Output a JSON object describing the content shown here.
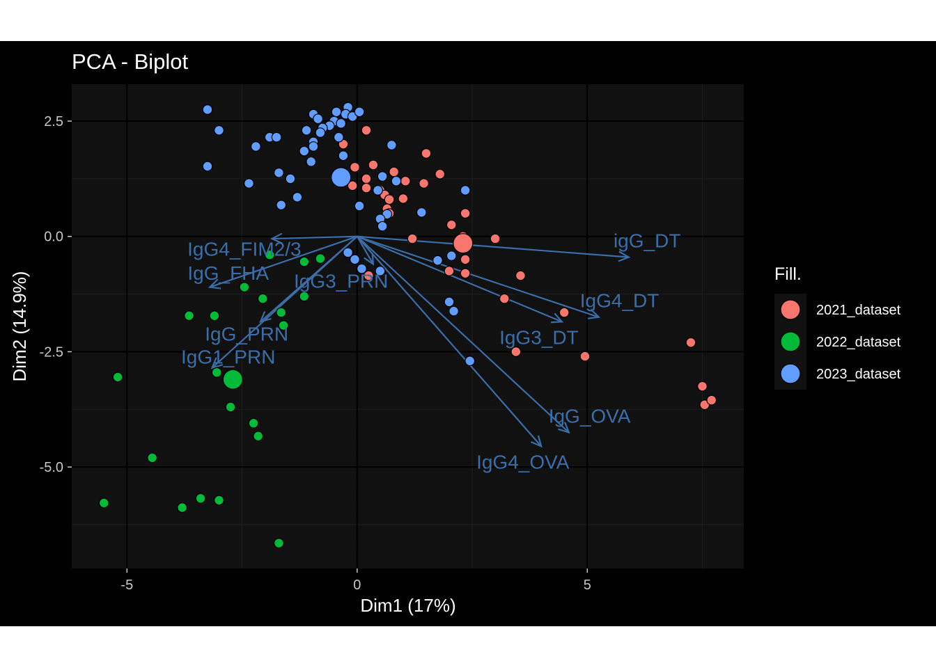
{
  "chart_data": {
    "type": "scatter",
    "title": "PCA - Biplot",
    "xlabel": "Dim1 (17%)",
    "ylabel": "Dim2 (14.9%)",
    "xlim": [
      -6.2,
      8.4
    ],
    "ylim": [
      -7.2,
      3.3
    ],
    "x_ticks": [
      -5,
      0,
      5
    ],
    "x_tick_labels": [
      "-5",
      "0",
      "5"
    ],
    "y_ticks": [
      2.5,
      0.0,
      -2.5,
      -5.0
    ],
    "y_tick_labels": [
      "2.5",
      "0.0",
      "-2.5",
      "-5.0"
    ],
    "grid": true,
    "legend": {
      "title": "Fill.",
      "position": "right",
      "entries": [
        {
          "label": "2021_dataset",
          "color": "#F8766D"
        },
        {
          "label": "2022_dataset",
          "color": "#00BA38"
        },
        {
          "label": "2023_dataset",
          "color": "#619CFF"
        }
      ]
    },
    "series": [
      {
        "name": "2021_dataset",
        "color": "#F8766D",
        "points": [
          [
            0.2,
            2.3
          ],
          [
            -0.3,
            2.0
          ],
          [
            0.35,
            1.55
          ],
          [
            -0.05,
            1.5
          ],
          [
            0.8,
            1.4
          ],
          [
            0.2,
            1.25
          ],
          [
            -0.1,
            1.1
          ],
          [
            0.2,
            1.05
          ],
          [
            0.5,
            1.0
          ],
          [
            1.05,
            1.2
          ],
          [
            1.45,
            1.15
          ],
          [
            1.8,
            1.35
          ],
          [
            1.5,
            1.8
          ],
          [
            0.6,
            0.9
          ],
          [
            0.7,
            0.8
          ],
          [
            1.0,
            0.82
          ],
          [
            0.65,
            0.6
          ],
          [
            0.7,
            0.5
          ],
          [
            2.35,
            0.5
          ],
          [
            2.05,
            0.25
          ],
          [
            2.3,
            0.0
          ],
          [
            2.3,
            -0.2
          ],
          [
            1.2,
            -0.05
          ],
          [
            3.0,
            -0.05
          ],
          [
            2.35,
            -0.5
          ],
          [
            2.35,
            -0.8
          ],
          [
            2.0,
            -0.75
          ],
          [
            3.2,
            -1.35
          ],
          [
            3.55,
            -0.85
          ],
          [
            4.5,
            -1.65
          ],
          [
            3.45,
            -2.5
          ],
          [
            4.95,
            -2.6
          ],
          [
            7.25,
            -2.3
          ],
          [
            7.5,
            -3.25
          ],
          [
            7.55,
            -3.65
          ],
          [
            7.7,
            -3.55
          ],
          [
            0.25,
            -0.85
          ]
        ],
        "centroid": [
          2.3,
          -0.15
        ]
      },
      {
        "name": "2022_dataset",
        "color": "#00BA38",
        "points": [
          [
            -1.9,
            -0.4
          ],
          [
            -1.15,
            -0.55
          ],
          [
            -0.8,
            -0.48
          ],
          [
            -2.45,
            -1.1
          ],
          [
            -2.05,
            -1.35
          ],
          [
            -1.15,
            -1.3
          ],
          [
            -1.65,
            -1.65
          ],
          [
            -1.6,
            -1.93
          ],
          [
            -3.65,
            -1.72
          ],
          [
            -3.1,
            -1.72
          ],
          [
            -3.05,
            -2.95
          ],
          [
            -5.2,
            -3.05
          ],
          [
            -2.75,
            -3.7
          ],
          [
            -2.25,
            -4.05
          ],
          [
            -2.15,
            -4.33
          ],
          [
            -4.45,
            -4.8
          ],
          [
            -3.4,
            -5.68
          ],
          [
            -3.0,
            -5.72
          ],
          [
            -5.5,
            -5.78
          ],
          [
            -3.8,
            -5.88
          ],
          [
            -1.7,
            -6.65
          ]
        ],
        "centroid": [
          -2.7,
          -3.1
        ]
      },
      {
        "name": "2023_dataset",
        "color": "#619CFF",
        "points": [
          [
            -3.25,
            2.75
          ],
          [
            -3.0,
            2.3
          ],
          [
            -1.9,
            2.15
          ],
          [
            -1.75,
            2.15
          ],
          [
            -2.2,
            1.95
          ],
          [
            -0.95,
            2.65
          ],
          [
            -0.85,
            2.55
          ],
          [
            -0.45,
            2.7
          ],
          [
            -0.2,
            2.8
          ],
          [
            -0.25,
            2.65
          ],
          [
            -0.1,
            2.6
          ],
          [
            0.05,
            2.7
          ],
          [
            -0.5,
            2.5
          ],
          [
            -0.35,
            2.45
          ],
          [
            -0.6,
            2.4
          ],
          [
            -0.75,
            2.35
          ],
          [
            -1.1,
            2.3
          ],
          [
            -0.8,
            2.25
          ],
          [
            -0.4,
            2.15
          ],
          [
            -0.95,
            2.05
          ],
          [
            -0.95,
            1.95
          ],
          [
            -1.15,
            1.85
          ],
          [
            -0.3,
            1.75
          ],
          [
            -1.0,
            1.62
          ],
          [
            0.75,
            1.98
          ],
          [
            -3.25,
            1.52
          ],
          [
            -1.7,
            1.38
          ],
          [
            -1.45,
            1.25
          ],
          [
            -2.35,
            1.15
          ],
          [
            -1.3,
            0.85
          ],
          [
            -1.65,
            0.68
          ],
          [
            0.05,
            0.66
          ],
          [
            0.55,
            1.3
          ],
          [
            0.85,
            1.2
          ],
          [
            2.35,
            1.0
          ],
          [
            0.45,
            1.0
          ],
          [
            1.4,
            0.52
          ],
          [
            0.65,
            0.48
          ],
          [
            0.5,
            0.38
          ],
          [
            0.55,
            0.22
          ],
          [
            -0.05,
            -0.5
          ],
          [
            0.1,
            -0.7
          ],
          [
            0.5,
            -0.75
          ],
          [
            1.75,
            -0.52
          ],
          [
            2.05,
            -0.42
          ],
          [
            2.0,
            -1.42
          ],
          [
            2.1,
            -1.62
          ],
          [
            2.45,
            -2.7
          ],
          [
            -0.2,
            -0.35
          ]
        ],
        "centroid": [
          -0.35,
          1.28
        ]
      }
    ],
    "variables": [
      {
        "name": "igG_DT",
        "end": [
          5.9,
          -0.45
        ],
        "label_pos": [
          6.3,
          -0.1
        ]
      },
      {
        "name": "IgG4_DT",
        "end": [
          5.25,
          -1.75
        ],
        "label_pos": [
          5.7,
          -1.4
        ]
      },
      {
        "name": "IgG3_DT",
        "end": [
          4.45,
          -1.85
        ],
        "label_pos": [
          3.95,
          -2.2
        ]
      },
      {
        "name": "IgG_OVA",
        "end": [
          4.6,
          -4.25
        ],
        "label_pos": [
          5.05,
          -3.9
        ]
      },
      {
        "name": "IgG4_OVA",
        "end": [
          4.0,
          -4.55
        ],
        "label_pos": [
          3.6,
          -4.9
        ]
      },
      {
        "name": "IgG4_FIM2/3",
        "end": [
          -1.85,
          -0.05
        ],
        "label_pos": [
          -2.45,
          -0.28
        ]
      },
      {
        "name": "IgG_FHA",
        "end": [
          -3.2,
          -1.1
        ],
        "label_pos": [
          -2.8,
          -0.8
        ]
      },
      {
        "name": "IgG3_PRN",
        "end": [
          0.35,
          -0.6
        ],
        "label_pos": [
          -0.35,
          -0.98
        ]
      },
      {
        "name": "IgG_PRN",
        "end": [
          -2.1,
          -1.85
        ],
        "label_pos": [
          -2.4,
          -2.12
        ]
      },
      {
        "name": "IgG1_PRN",
        "end": [
          -3.15,
          -2.85
        ],
        "label_pos": [
          -2.8,
          -2.62
        ]
      }
    ]
  }
}
